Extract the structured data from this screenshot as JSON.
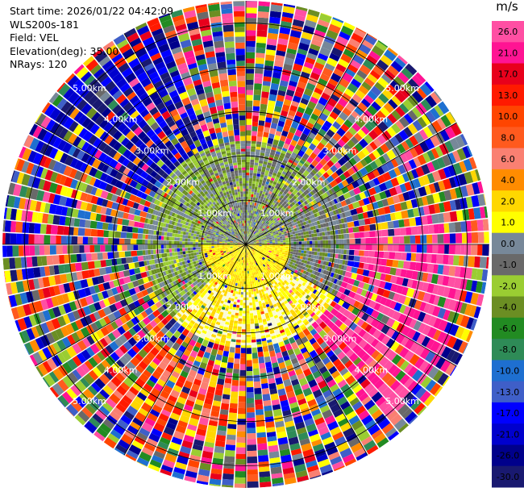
{
  "header": {
    "start_time": "Start time: 2026/01/22 04:42:09",
    "instrument": "WLS200s-181",
    "field": "Field: VEL",
    "elevation": "Elevation(deg): 35.00",
    "nrays": "NRays: 120"
  },
  "chart_data": {
    "type": "heatmap",
    "projection": "polar-ppi",
    "field": "VEL",
    "units": "m/s",
    "n_rays": 120,
    "range_rings_km": [
      1,
      2,
      3,
      4,
      5
    ],
    "ring_labels": [
      "1.00km",
      "2.00km",
      "3.00km",
      "4.00km",
      "5.00km"
    ],
    "max_range_km": 5.5,
    "spokes_deg": [
      0,
      30,
      60,
      90,
      120,
      150,
      180,
      210,
      240,
      270,
      300,
      330
    ],
    "colorbar": {
      "unit": "m/s",
      "ticks": [
        "26.0",
        "21.0",
        "17.0",
        "13.0",
        "10.0",
        "8.0",
        "6.0",
        "4.0",
        "2.0",
        "1.0",
        "0.0",
        "-1.0",
        "-2.0",
        "-4.0",
        "-6.0",
        "-8.0",
        "-10.0",
        "-13.0",
        "-17.0",
        "-21.0",
        "-26.0",
        "-30.0"
      ],
      "colors": [
        "#ff4fa3",
        "#ff1493",
        "#e8001c",
        "#ff1a00",
        "#ff4500",
        "#ff5a1e",
        "#fa8072",
        "#ff8c00",
        "#ffd700",
        "#ffff00",
        "#778899",
        "#696969",
        "#9acd32",
        "#6b8e23",
        "#228b22",
        "#2e8b57",
        "#1e6fd0",
        "#3f5fc8",
        "#0000ff",
        "#0000cd",
        "#00008b",
        "#191970"
      ]
    },
    "structure": {
      "inner_zone_km": 1.0,
      "near_field_km": 2.3,
      "sectors": [
        {
          "az_from": 270,
          "az_to": 90,
          "range_to_km": 1.0,
          "colors": [
            "#778899",
            "#696969",
            "#9acd32"
          ]
        },
        {
          "az_from": 90,
          "az_to": 270,
          "range_to_km": 1.0,
          "colors": [
            "#ffff00",
            "#ffd700"
          ]
        },
        {
          "az_from": 225,
          "az_to": 330,
          "range_from_km": 1.0,
          "range_to_km": 2.3,
          "colors": [
            "#9acd32",
            "#6b8e23",
            "#778899"
          ]
        },
        {
          "az_from": 330,
          "az_to": 60,
          "range_from_km": 1.0,
          "range_to_km": 2.3,
          "colors": [
            "#9acd32",
            "#778899",
            "#6b8e23",
            "#696969"
          ]
        },
        {
          "az_from": 60,
          "az_to": 120,
          "range_from_km": 1.0,
          "range_to_km": 2.3,
          "colors": [
            "#778899",
            "#696969",
            "#6b8e23"
          ]
        },
        {
          "az_from": 120,
          "az_to": 225,
          "range_from_km": 1.0,
          "range_to_km": 2.3,
          "colors": [
            "#ffff00",
            "#ffd700",
            "#fafad2"
          ]
        },
        {
          "az_from": 295,
          "az_to": 340,
          "range_from_km": 2.3,
          "range_to_km": 5.2,
          "colors": [
            "#0000ff",
            "#0000cd",
            "#191970",
            "#00008b"
          ]
        },
        {
          "az_from": 85,
          "az_to": 140,
          "range_from_km": 2.3,
          "range_to_km": 5.0,
          "colors": [
            "#ff1493",
            "#ff4fa3"
          ]
        },
        {
          "az_from": 180,
          "az_to": 225,
          "range_from_km": 3.0,
          "range_to_km": 4.5,
          "colors": [
            "#ff1a00",
            "#ff4500",
            "#ffd700",
            "#fa8072"
          ]
        }
      ]
    }
  }
}
